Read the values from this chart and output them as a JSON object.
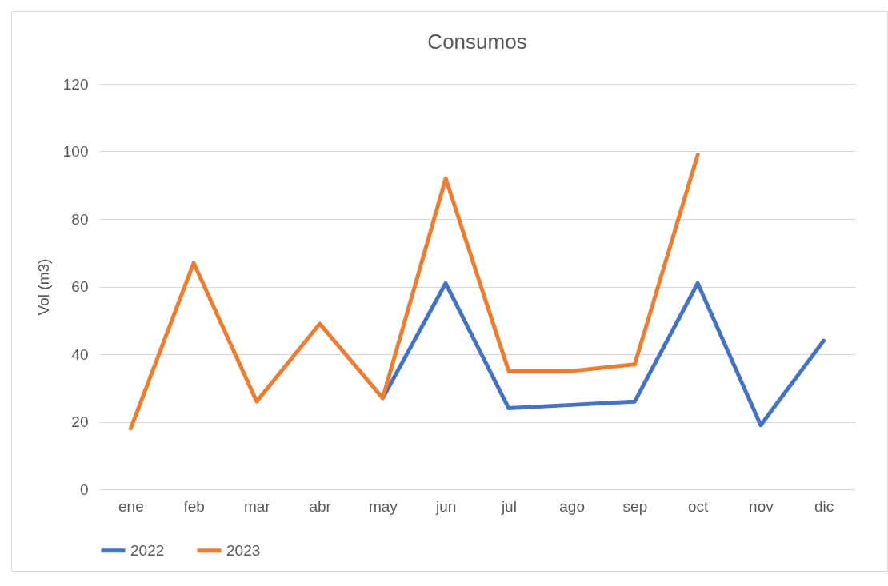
{
  "chart_data": {
    "type": "line",
    "title": "Consumos",
    "ylabel": "Vol (m3)",
    "categories": [
      "ene",
      "feb",
      "mar",
      "abr",
      "may",
      "jun",
      "jul",
      "ago",
      "sep",
      "oct",
      "nov",
      "dic"
    ],
    "series": [
      {
        "name": "2022",
        "color": "#4472c4",
        "values": [
          null,
          null,
          null,
          null,
          27,
          61,
          24,
          25,
          26,
          61,
          19,
          44
        ]
      },
      {
        "name": "2023",
        "color": "#ed7d31",
        "values": [
          18,
          67,
          26,
          49,
          27,
          92,
          35,
          35,
          37,
          99,
          null,
          null
        ]
      }
    ],
    "ylim": [
      0,
      120
    ],
    "yticks": [
      0,
      20,
      40,
      60,
      80,
      100,
      120
    ],
    "grid": "y",
    "legend": "bottom",
    "marker": "none",
    "line_style": "solid"
  }
}
